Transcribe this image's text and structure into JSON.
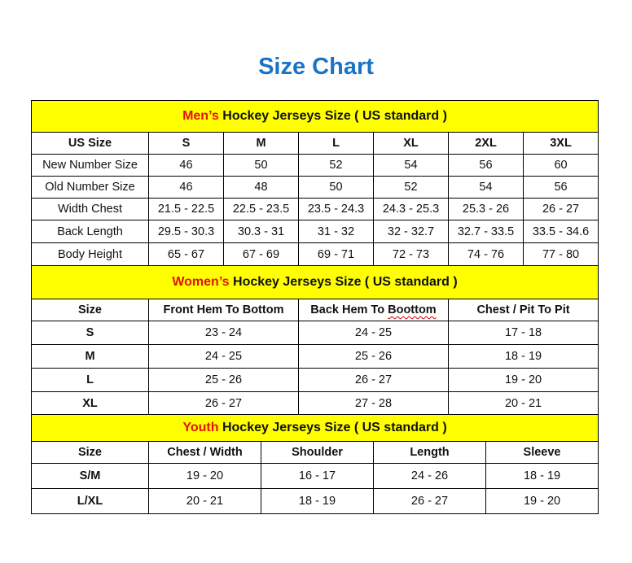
{
  "title": "Size Chart",
  "men": {
    "banner_prefix": "Men’s",
    "banner_rest": " Hockey Jerseys Size ( US standard )",
    "header": [
      "US Size",
      "S",
      "M",
      "L",
      "XL",
      "2XL",
      "3XL"
    ],
    "rows": [
      [
        "New Number Size",
        "46",
        "50",
        "52",
        "54",
        "56",
        "60"
      ],
      [
        "Old Number Size",
        "46",
        "48",
        "50",
        "52",
        "54",
        "56"
      ],
      [
        "Width Chest",
        "21.5 - 22.5",
        "22.5 - 23.5",
        "23.5 - 24.3",
        "24.3 - 25.3",
        "25.3 - 26",
        "26 - 27"
      ],
      [
        "Back Length",
        "29.5 - 30.3",
        "30.3 - 31",
        "31 - 32",
        "32 - 32.7",
        "32.7 - 33.5",
        "33.5 - 34.6"
      ],
      [
        "Body Height",
        "65 - 67",
        "67 - 69",
        "69 - 71",
        "72 - 73",
        "74 - 76",
        "77 - 80"
      ]
    ]
  },
  "women": {
    "banner_prefix": "Women’s",
    "banner_rest": " Hockey Jerseys Size ( US standard )",
    "header": [
      "Size",
      "Front Hem To Bottom",
      "Back Hem To Boottom",
      "Chest / Pit To Pit"
    ],
    "rows": [
      [
        "S",
        "23 - 24",
        "24 - 25",
        "17 - 18"
      ],
      [
        "M",
        "24 - 25",
        "25 - 26",
        "18 - 19"
      ],
      [
        "L",
        "25 - 26",
        "26 - 27",
        "19 - 20"
      ],
      [
        "XL",
        "26 - 27",
        "27 - 28",
        "20 - 21"
      ]
    ]
  },
  "youth": {
    "banner_prefix": "Youth",
    "banner_rest": " Hockey Jerseys Size ( US standard )",
    "header": [
      "Size",
      "Chest / Width",
      "Shoulder",
      "Length",
      "Sleeve"
    ],
    "rows": [
      [
        "S/M",
        "19 - 20",
        "16 - 17",
        "24 - 26",
        "18 - 19"
      ],
      [
        "L/XL",
        "20 - 21",
        "18 - 19",
        "26 - 27",
        "19 - 20"
      ]
    ]
  },
  "colors": {
    "title": "#1a73c6",
    "banner": "#ffff00",
    "banner_prefix": "#e3120b"
  }
}
